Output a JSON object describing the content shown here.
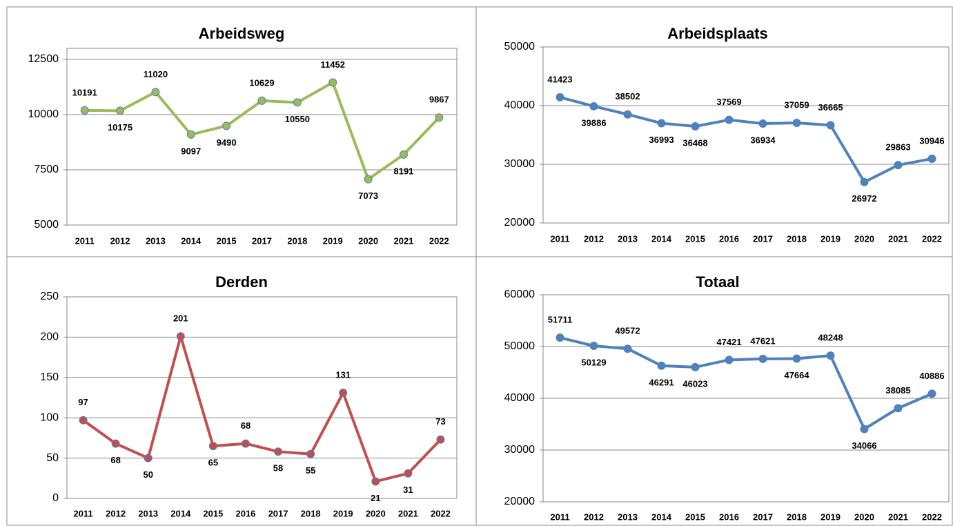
{
  "chart_data": [
    {
      "type": "line",
      "title": "Arbeidsweg",
      "categories": [
        "2011",
        "2012",
        "2013",
        "2014",
        "2015",
        "2017",
        "2018",
        "2019",
        "2020",
        "2021",
        "2022"
      ],
      "values": [
        10191,
        10175,
        11020,
        9097,
        9490,
        10629,
        10550,
        11452,
        7073,
        8191,
        9867
      ],
      "color": "#9bbb59",
      "ylim": [
        5000,
        13000
      ],
      "yticks": [
        5000,
        7500,
        10000,
        12500
      ],
      "grid": true
    },
    {
      "type": "line",
      "title": "Arbeidsplaats",
      "categories": [
        "2011",
        "2012",
        "2013",
        "2014",
        "2015",
        "2016",
        "2017",
        "2018",
        "2019",
        "2020",
        "2021",
        "2022"
      ],
      "values": [
        41423,
        39886,
        38502,
        36993,
        36468,
        37569,
        36934,
        37059,
        36665,
        26972,
        29863,
        30946
      ],
      "color": "#4f81bd",
      "ylim": [
        20000,
        50000
      ],
      "yticks": [
        20000,
        30000,
        40000,
        50000
      ],
      "grid": true
    },
    {
      "type": "line",
      "title": "Derden",
      "categories": [
        "2011",
        "2012",
        "2013",
        "2014",
        "2015",
        "2016",
        "2017",
        "2018",
        "2019",
        "2020",
        "2021",
        "2022"
      ],
      "values": [
        97,
        68,
        50,
        201,
        65,
        68,
        58,
        55,
        131,
        21,
        31,
        73
      ],
      "color": "#c0504d",
      "ylim": [
        0,
        250
      ],
      "yticks": [
        0,
        50,
        100,
        150,
        200,
        250
      ],
      "grid": true
    },
    {
      "type": "line",
      "title": "Totaal",
      "categories": [
        "2011",
        "2012",
        "2013",
        "2014",
        "2015",
        "2016",
        "2017",
        "2018",
        "2019",
        "2020",
        "2021",
        "2022"
      ],
      "values": [
        51711,
        50129,
        49572,
        46291,
        46023,
        47421,
        47621,
        47664,
        48248,
        34066,
        38085,
        40886
      ],
      "color": "#4f81bd",
      "ylim": [
        20000,
        60000
      ],
      "yticks": [
        20000,
        30000,
        40000,
        50000,
        60000
      ],
      "grid": true
    }
  ]
}
